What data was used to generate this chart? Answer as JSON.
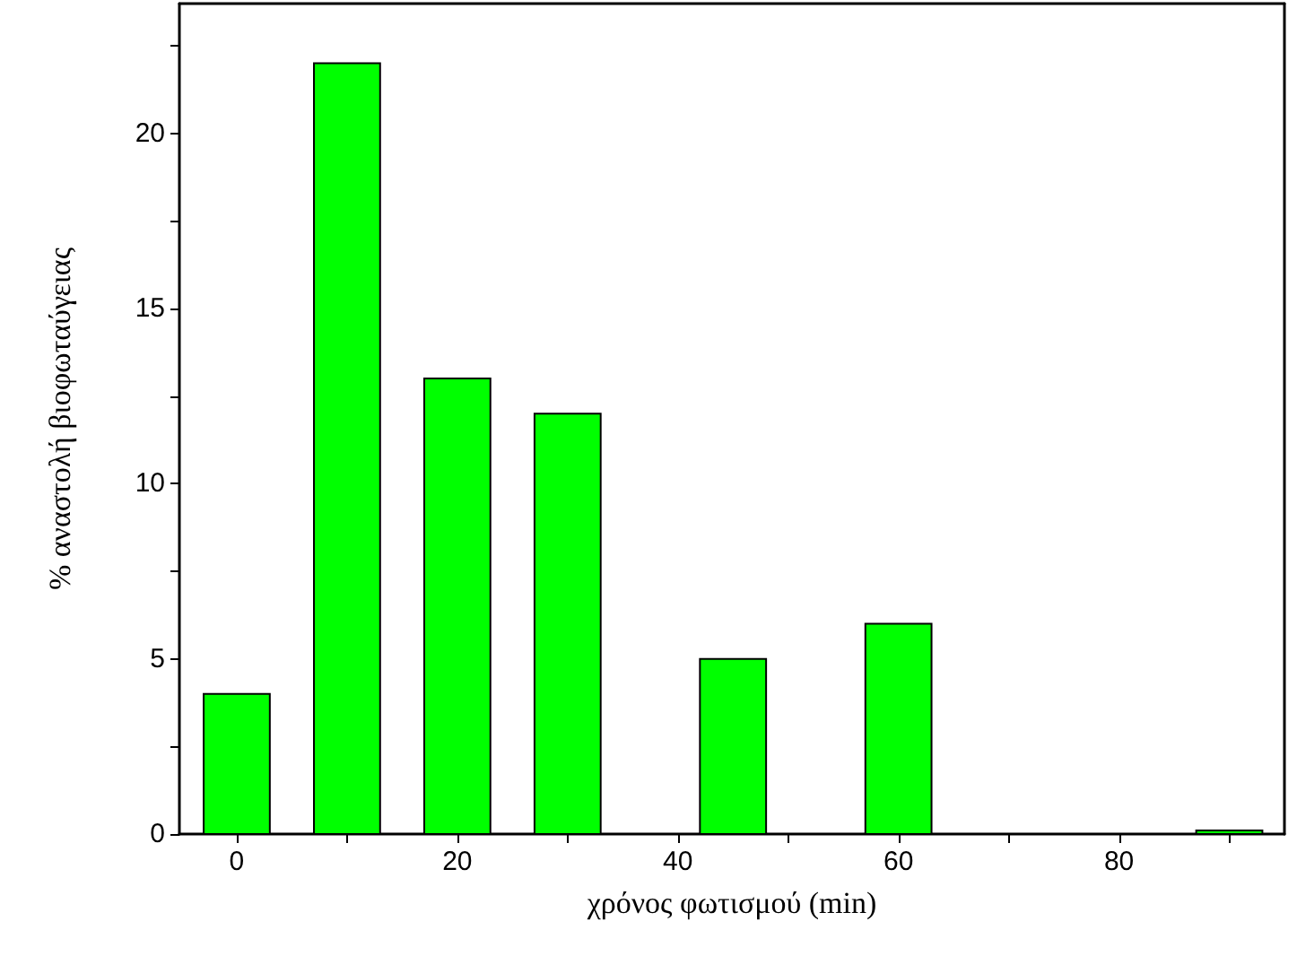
{
  "chart_data": {
    "type": "bar",
    "xlabel": "χρόνος φωτισμού (min)",
    "ylabel": "% αναστολή βιοφωταύγειας",
    "x": [
      0,
      10,
      20,
      30,
      45,
      60,
      90
    ],
    "values": [
      4,
      22,
      13,
      12,
      5,
      6,
      0.1
    ],
    "color": "#00ff00",
    "xlim": [
      -5.2,
      95
    ],
    "xticks": [
      0,
      {
        "value": 10,
        "label": null
      },
      20,
      {
        "value": 30,
        "label": null
      },
      40,
      {
        "value": 50,
        "label": null
      },
      60,
      {
        "value": 70,
        "label": null
      },
      80,
      {
        "value": 90,
        "label": null
      }
    ],
    "ylim": [
      0,
      23.7
    ],
    "yticks": [
      0,
      {
        "value": 2.5,
        "label": null
      },
      5,
      {
        "value": 7.5,
        "label": null
      },
      10,
      {
        "value": 12.5,
        "label": null
      },
      15,
      {
        "value": 17.5,
        "label": null
      },
      20,
      {
        "value": 22.5,
        "label": null
      }
    ],
    "grid": false
  }
}
